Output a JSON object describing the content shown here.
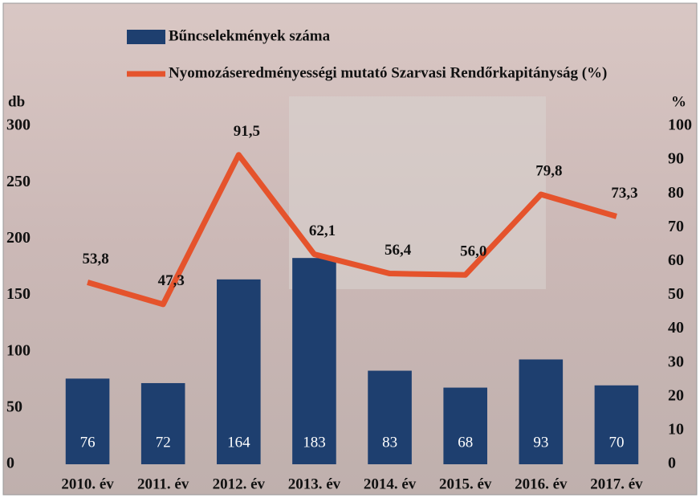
{
  "chart_data": {
    "type": "bar-line",
    "categories": [
      "2010. év",
      "2011. év",
      "2012. év",
      "2013. év",
      "2014. év",
      "2015. év",
      "2016. év",
      "2017. év"
    ],
    "series": [
      {
        "name": "Bűncselekmények száma",
        "type": "bar",
        "color": "#1e3f6f",
        "values": [
          76,
          72,
          164,
          183,
          83,
          68,
          93,
          70
        ]
      },
      {
        "name": "Nyomozáseredményességi mutató Szarvasi Rendőrkapitányság (%)",
        "type": "line",
        "axis": "y2",
        "color": "#e5532c",
        "values": [
          53.8,
          47.3,
          91.5,
          62.1,
          56.4,
          56.0,
          79.8,
          73.3
        ],
        "value_labels": [
          "53,8",
          "47,3",
          "91,5",
          "62,1",
          "56,4",
          "56,0",
          "79,8",
          "73,3"
        ]
      }
    ],
    "ylabel": "db",
    "y2label": "%",
    "ylim": [
      0,
      300
    ],
    "yticks": [
      0,
      50,
      100,
      150,
      200,
      250,
      300
    ],
    "y2lim": [
      0,
      100
    ],
    "y2ticks": [
      0,
      10,
      20,
      30,
      40,
      50,
      60,
      70,
      80,
      90,
      100
    ]
  }
}
